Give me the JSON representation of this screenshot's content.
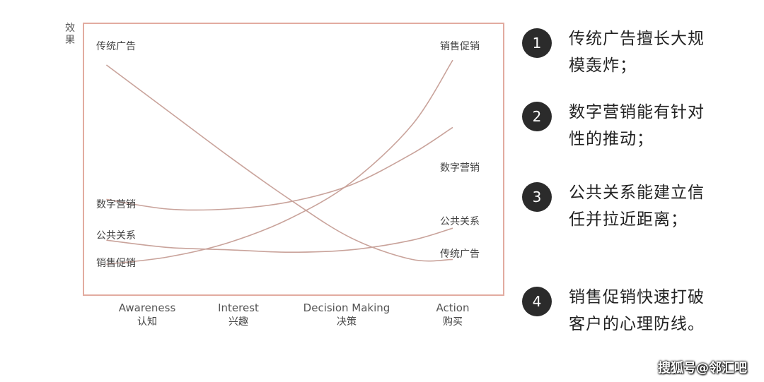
{
  "chart_data": {
    "type": "line",
    "ylabel": "效果",
    "xlabel": "",
    "x": [
      0,
      1,
      2,
      3
    ],
    "categories": [
      {
        "en": "Awareness",
        "zh": "认知"
      },
      {
        "en": "Interest",
        "zh": "兴趣"
      },
      {
        "en": "Decision Making",
        "zh": "决策"
      },
      {
        "en": "Action",
        "zh": "购买"
      }
    ],
    "ylim": [
      0,
      10
    ],
    "series": [
      {
        "name": "传统广告",
        "end_label": "传统广告",
        "x": [
          -0.4,
          0.2,
          0.8,
          1.4,
          2.0,
          2.6,
          3.0
        ],
        "y": [
          9.0,
          7.1,
          5.2,
          3.4,
          1.8,
          0.9,
          0.9
        ]
      },
      {
        "name": "数字营销",
        "end_label": "数字营销",
        "x": [
          -0.4,
          0.2,
          0.8,
          1.4,
          2.0,
          2.6,
          3.0
        ],
        "y": [
          3.4,
          3.0,
          3.0,
          3.3,
          4.0,
          5.3,
          6.4
        ]
      },
      {
        "name": "公共关系",
        "end_label": "公共关系",
        "x": [
          -0.4,
          0.2,
          0.8,
          1.4,
          2.0,
          2.6,
          3.0
        ],
        "y": [
          1.7,
          1.4,
          1.3,
          1.2,
          1.3,
          1.7,
          2.2
        ]
      },
      {
        "name": "销售促销",
        "end_label": "销售促销",
        "x": [
          -0.4,
          0.2,
          0.8,
          1.4,
          2.0,
          2.6,
          3.0
        ],
        "y": [
          0.7,
          1.0,
          1.6,
          2.6,
          4.1,
          6.5,
          9.2
        ]
      }
    ],
    "grid": false,
    "legend": "none"
  },
  "colors": {
    "curve": "#c9a39b",
    "frame": "#e2aba0",
    "badge": "#2b2b2b"
  },
  "points": [
    {
      "num": "1",
      "text": "传统广告擅长大规模轰炸；"
    },
    {
      "num": "2",
      "text": "数字营销能有针对性的推动；"
    },
    {
      "num": "3",
      "text": "公共关系能建立信任并拉近距离；"
    },
    {
      "num": "4",
      "text": "销售促销快速打破客户的心理防线。"
    }
  ],
  "watermark": "搜狐号@邻汇吧"
}
